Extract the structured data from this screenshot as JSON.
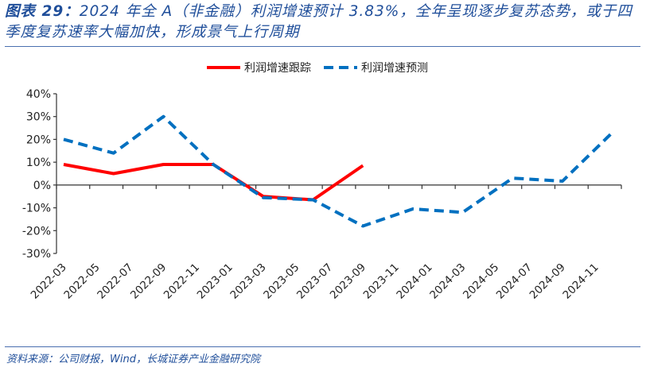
{
  "header": {
    "title_prefix": "图表 29：",
    "title_text": "2024 年全 A（非金融）利润增速预计 3.83%，全年呈现逐步复苏态势，或于四季度复苏速率大幅加快，形成景气上行周期"
  },
  "footer": {
    "source": "资料来源：公司财报，Wind，长城证券产业金融研究院"
  },
  "chart_data": {
    "type": "line",
    "title": "",
    "xlabel": "",
    "ylabel": "",
    "ylim": [
      -30,
      40
    ],
    "yticks": [
      "40%",
      "30%",
      "20%",
      "10%",
      "0%",
      "-10%",
      "-20%",
      "-30%"
    ],
    "ytick_values": [
      40,
      30,
      20,
      10,
      0,
      -10,
      -20,
      -30
    ],
    "xticks": [
      "2022-03",
      "2022-05",
      "2022-07",
      "2022-09",
      "2022-11",
      "2023-01",
      "2023-03",
      "2023-05",
      "2023-07",
      "2023-09",
      "2023-11",
      "2024-01",
      "2024-03",
      "2024-05",
      "2024-07",
      "2024-09",
      "2024-11"
    ],
    "x": [
      "2022-03",
      "2022-06",
      "2022-09",
      "2022-12",
      "2023-03",
      "2023-06",
      "2023-09",
      "2023-12",
      "2024-03",
      "2024-06",
      "2024-09",
      "2024-12"
    ],
    "legend_position": "top",
    "grid": false,
    "series": [
      {
        "name": "利润增速跟踪",
        "color": "#ff0000",
        "style": "solid",
        "values": [
          9,
          5,
          9,
          9,
          -5,
          -6.5,
          8.5,
          null,
          null,
          null,
          null,
          null
        ]
      },
      {
        "name": "利润增速预测",
        "color": "#0070c0",
        "style": "dashed",
        "values": [
          20,
          14,
          30,
          9,
          -5.5,
          -6.5,
          -18,
          -10.5,
          -12,
          3,
          1.7,
          23
        ]
      }
    ]
  }
}
